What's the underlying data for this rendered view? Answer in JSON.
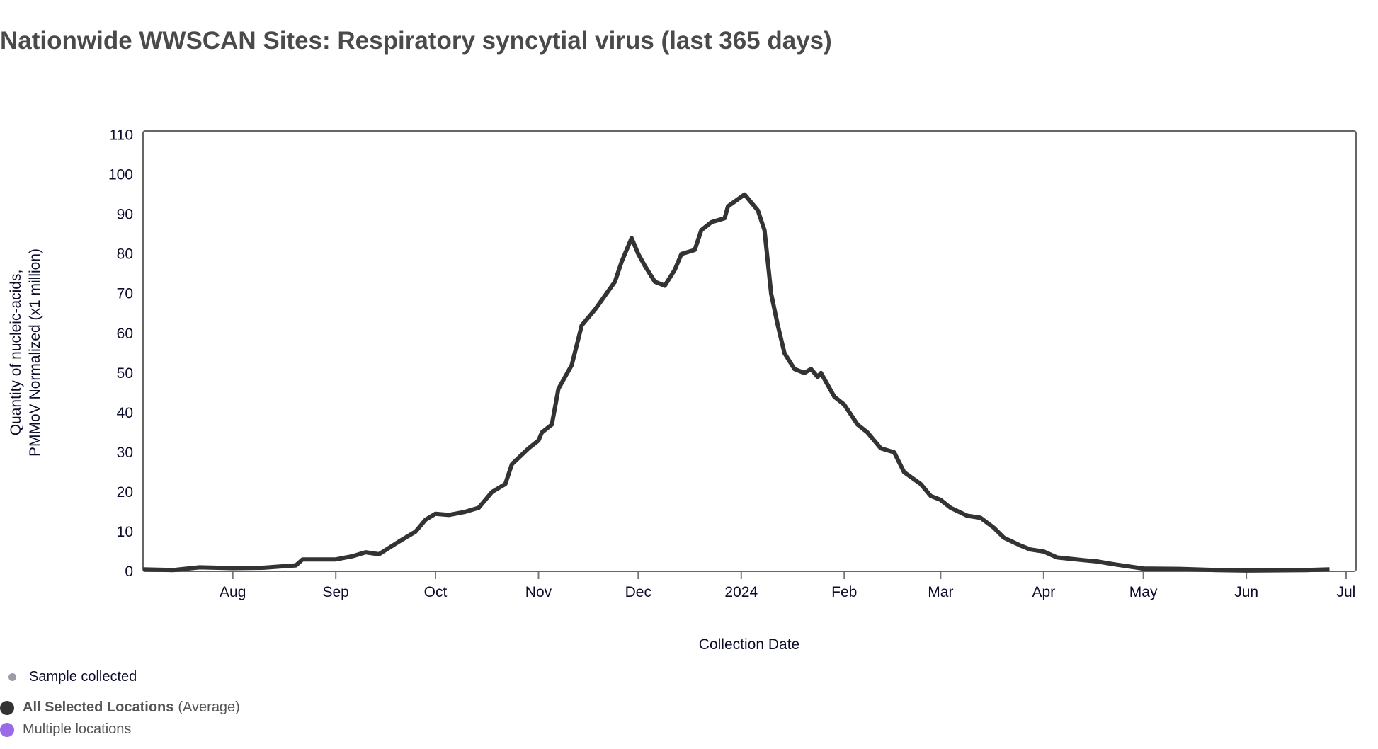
{
  "chart_data": {
    "type": "line",
    "title": "Nationwide WWSCAN Sites: Respiratory syncytial virus (last 365 days)",
    "xlabel": "Collection Date",
    "ylabel": [
      "Quantity of nucleic-acids,",
      "PMMoV Normalized (x1 million)"
    ],
    "ylim": [
      0,
      111
    ],
    "yticks": [
      0,
      10,
      20,
      30,
      40,
      50,
      60,
      70,
      80,
      90,
      100,
      110
    ],
    "xlim": [
      "2023-07-05",
      "2024-07-04"
    ],
    "xticks": [
      {
        "date": "2023-08-01",
        "label": "Aug"
      },
      {
        "date": "2023-09-01",
        "label": "Sep"
      },
      {
        "date": "2023-10-01",
        "label": "Oct"
      },
      {
        "date": "2023-11-01",
        "label": "Nov"
      },
      {
        "date": "2023-12-01",
        "label": "Dec"
      },
      {
        "date": "2024-01-01",
        "label": "2024"
      },
      {
        "date": "2024-02-01",
        "label": "Feb"
      },
      {
        "date": "2024-03-01",
        "label": "Mar"
      },
      {
        "date": "2024-04-01",
        "label": "Apr"
      },
      {
        "date": "2024-05-01",
        "label": "May"
      },
      {
        "date": "2024-06-01",
        "label": "Jun"
      },
      {
        "date": "2024-07-01",
        "label": "Jul"
      }
    ],
    "grid": false,
    "series": [
      {
        "name": "All Selected Locations (Average)",
        "color": "#333333",
        "points": [
          [
            "2023-07-05",
            0.5
          ],
          [
            "2023-07-14",
            0.3
          ],
          [
            "2023-07-22",
            1.0
          ],
          [
            "2023-08-01",
            0.8
          ],
          [
            "2023-08-10",
            0.9
          ],
          [
            "2023-08-20",
            1.5
          ],
          [
            "2023-08-22",
            3.0
          ],
          [
            "2023-09-01",
            3.0
          ],
          [
            "2023-09-06",
            3.8
          ],
          [
            "2023-09-10",
            4.8
          ],
          [
            "2023-09-14",
            4.3
          ],
          [
            "2023-09-20",
            7.5
          ],
          [
            "2023-09-25",
            10
          ],
          [
            "2023-09-28",
            13
          ],
          [
            "2023-10-01",
            14.5
          ],
          [
            "2023-10-05",
            14.2
          ],
          [
            "2023-10-10",
            15
          ],
          [
            "2023-10-14",
            16
          ],
          [
            "2023-10-18",
            20
          ],
          [
            "2023-10-22",
            22
          ],
          [
            "2023-10-24",
            27
          ],
          [
            "2023-10-29",
            31
          ],
          [
            "2023-11-01",
            33
          ],
          [
            "2023-11-02",
            35
          ],
          [
            "2023-11-05",
            37
          ],
          [
            "2023-11-07",
            46
          ],
          [
            "2023-11-11",
            52
          ],
          [
            "2023-11-14",
            62
          ],
          [
            "2023-11-18",
            66
          ],
          [
            "2023-11-24",
            73
          ],
          [
            "2023-11-26",
            78
          ],
          [
            "2023-11-29",
            84
          ],
          [
            "2023-12-01",
            80
          ],
          [
            "2023-12-03",
            77
          ],
          [
            "2023-12-06",
            73
          ],
          [
            "2023-12-09",
            72
          ],
          [
            "2023-12-12",
            76
          ],
          [
            "2023-12-14",
            80
          ],
          [
            "2023-12-18",
            81
          ],
          [
            "2023-12-20",
            86
          ],
          [
            "2023-12-23",
            88
          ],
          [
            "2023-12-27",
            89
          ],
          [
            "2023-12-28",
            92
          ],
          [
            "2024-01-02",
            95
          ],
          [
            "2024-01-04",
            93
          ],
          [
            "2024-01-06",
            91
          ],
          [
            "2024-01-08",
            86
          ],
          [
            "2024-01-10",
            70
          ],
          [
            "2024-01-12",
            62
          ],
          [
            "2024-01-14",
            55
          ],
          [
            "2024-01-17",
            51
          ],
          [
            "2024-01-20",
            50
          ],
          [
            "2024-01-22",
            51
          ],
          [
            "2024-01-24",
            49
          ],
          [
            "2024-01-25",
            50
          ],
          [
            "2024-01-29",
            44
          ],
          [
            "2024-02-01",
            42
          ],
          [
            "2024-02-05",
            37
          ],
          [
            "2024-02-08",
            35
          ],
          [
            "2024-02-12",
            31
          ],
          [
            "2024-02-16",
            30
          ],
          [
            "2024-02-19",
            25
          ],
          [
            "2024-02-24",
            22
          ],
          [
            "2024-02-27",
            19
          ],
          [
            "2024-03-01",
            18
          ],
          [
            "2024-03-04",
            16
          ],
          [
            "2024-03-09",
            14
          ],
          [
            "2024-03-13",
            13.5
          ],
          [
            "2024-03-17",
            11
          ],
          [
            "2024-03-20",
            8.5
          ],
          [
            "2024-03-25",
            6.5
          ],
          [
            "2024-03-28",
            5.5
          ],
          [
            "2024-04-01",
            5
          ],
          [
            "2024-04-05",
            3.5
          ],
          [
            "2024-04-13",
            2.8
          ],
          [
            "2024-04-17",
            2.5
          ],
          [
            "2024-04-22",
            1.8
          ],
          [
            "2024-05-01",
            0.7
          ],
          [
            "2024-05-12",
            0.6
          ],
          [
            "2024-05-23",
            0.3
          ],
          [
            "2024-06-01",
            0.2
          ],
          [
            "2024-06-19",
            0.3
          ],
          [
            "2024-06-26",
            0.5
          ]
        ]
      }
    ],
    "legend": {
      "placement": "bottom-left",
      "sample_label": "Sample collected",
      "sample_color": "#9a9ca8",
      "items": [
        {
          "bold": "All Selected Locations",
          "suffix": "(Average)",
          "color": "#333333"
        },
        {
          "bold": "",
          "suffix": "Multiple locations",
          "color": "#9b6ae6"
        }
      ]
    }
  }
}
